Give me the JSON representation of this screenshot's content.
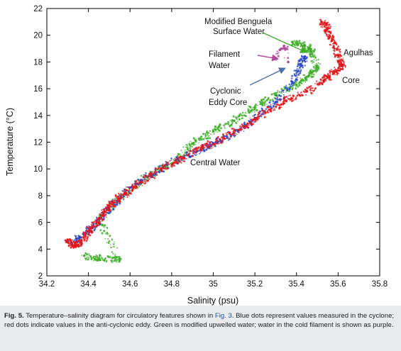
{
  "chart_data": {
    "type": "scatter",
    "xlabel": "Salinity (psu)",
    "ylabel": "Temperature (°C)",
    "xlim": [
      34.2,
      35.8
    ],
    "ylim": [
      2,
      22
    ],
    "x_ticks": [
      "34.2",
      "34.4",
      "34.6",
      "34.8",
      "35",
      "35.2",
      "35.4",
      "35.6",
      "35.8"
    ],
    "y_ticks": [
      "2",
      "4",
      "6",
      "8",
      "10",
      "12",
      "14",
      "16",
      "18",
      "20",
      "22"
    ],
    "grid": false,
    "colors": {
      "cyclone": "#2b48c8",
      "anticyclonic_eddy": "#e3161b",
      "modified_upwelled": "#3fae2a",
      "cold_filament": "#b0479a"
    },
    "series": [
      {
        "color_key": "anticyclonic_eddy",
        "values": [
          [
            34.3,
            4.7
          ],
          [
            34.33,
            4.2
          ],
          [
            34.36,
            4.5
          ],
          [
            34.4,
            5.3
          ],
          [
            34.44,
            6.0
          ],
          [
            34.48,
            6.8
          ],
          [
            34.52,
            7.5
          ],
          [
            34.58,
            8.2
          ],
          [
            34.65,
            9.0
          ],
          [
            34.75,
            10.0
          ],
          [
            34.85,
            10.8
          ],
          [
            34.95,
            11.6
          ],
          [
            35.05,
            12.3
          ],
          [
            35.15,
            13.2
          ],
          [
            35.25,
            14.2
          ],
          [
            35.35,
            15.1
          ],
          [
            35.45,
            15.8
          ],
          [
            35.53,
            16.6
          ],
          [
            35.58,
            17.2
          ],
          [
            35.62,
            17.7
          ],
          [
            35.6,
            18.5
          ],
          [
            35.57,
            19.6
          ],
          [
            35.55,
            20.5
          ],
          [
            35.52,
            21.0
          ]
        ]
      },
      {
        "color_key": "cyclone",
        "values": [
          [
            34.32,
            4.4
          ],
          [
            34.36,
            4.9
          ],
          [
            34.42,
            5.6
          ],
          [
            34.5,
            7.0
          ],
          [
            34.6,
            8.6
          ],
          [
            34.7,
            9.6
          ],
          [
            34.82,
            10.6
          ],
          [
            34.92,
            11.3
          ],
          [
            35.02,
            12.0
          ],
          [
            35.12,
            12.8
          ],
          [
            35.2,
            13.8
          ],
          [
            35.3,
            15.0
          ],
          [
            35.38,
            16.5
          ],
          [
            35.42,
            17.8
          ],
          [
            35.44,
            18.4
          ]
        ]
      },
      {
        "color_key": "modified_upwelled",
        "values": [
          [
            34.38,
            3.5
          ],
          [
            34.45,
            3.3
          ],
          [
            34.55,
            3.2
          ],
          [
            34.45,
            6.2
          ],
          [
            34.55,
            7.8
          ],
          [
            34.68,
            9.4
          ],
          [
            34.8,
            10.4
          ],
          [
            34.9,
            11.9
          ],
          [
            35.0,
            12.8
          ],
          [
            35.1,
            13.6
          ],
          [
            35.2,
            14.6
          ],
          [
            35.3,
            15.5
          ],
          [
            35.4,
            16.3
          ],
          [
            35.46,
            17.0
          ],
          [
            35.5,
            17.6
          ],
          [
            35.47,
            18.8
          ],
          [
            35.44,
            19.2
          ],
          [
            35.38,
            19.5
          ]
        ]
      },
      {
        "color_key": "cold_filament",
        "values": [
          [
            35.3,
            18.3
          ],
          [
            35.32,
            18.9
          ],
          [
            35.34,
            19.2
          ],
          [
            35.36,
            18.0
          ]
        ]
      }
    ],
    "annotations": [
      {
        "text_lines": [
          "Modified Benguela",
          "Surface Water"
        ],
        "arrow_color": "#3fae2a",
        "points_to": [
          35.43,
          19.1
        ]
      },
      {
        "text_lines": [
          "Filament",
          "Water"
        ],
        "arrow_color": "#b0479a",
        "points_to": [
          35.33,
          18.6
        ]
      },
      {
        "text_lines": [
          "Cyclonic",
          "Eddy Core"
        ],
        "arrow_color": "#4a6fae",
        "points_to": [
          35.39,
          17.6
        ]
      },
      {
        "text_lines": [
          "Agulhas"
        ]
      },
      {
        "text_lines": [
          "Core"
        ]
      },
      {
        "text_lines": [
          "Central Water"
        ]
      }
    ]
  },
  "caption": {
    "fig_label": "Fig. 5.",
    "text_before_ref": " Temperature–salinity diagram for circulatory features shown in ",
    "ref": "Fig. 3",
    "text_after_ref": ". Blue dots represent values measured in the cyclone; red dots indicate values in the anti-cyclonic eddy. Green is modified upwelled water; water in the cold filament is shown as purple."
  }
}
